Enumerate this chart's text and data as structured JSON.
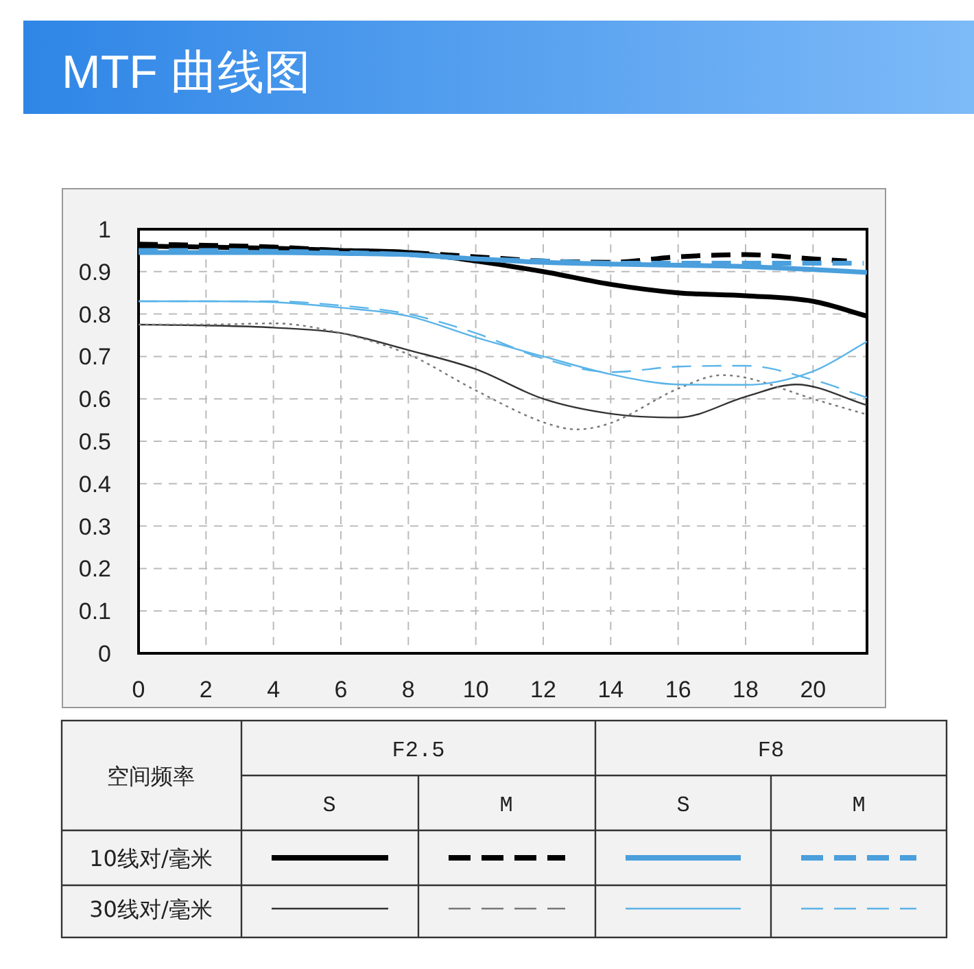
{
  "chart_data": {
    "type": "line",
    "title": "MTF 曲线图",
    "xlim": [
      0,
      21.6
    ],
    "xticks": [
      0,
      2,
      4,
      6,
      8,
      10,
      12,
      14,
      16,
      18,
      20
    ],
    "ylim": [
      0,
      1
    ],
    "yticks": [
      0,
      0.1,
      0.2,
      0.3,
      0.4,
      0.5,
      0.6,
      0.7,
      0.8,
      0.9,
      1
    ],
    "grid": true,
    "annotations": [
      "空间频率",
      "F2.5",
      "F8",
      "S",
      "M",
      "S",
      "M",
      "10线对/毫米",
      "30线对/毫米"
    ],
    "series": [
      {
        "color": "#000000",
        "line_style": "solid",
        "x": [
          0,
          2,
          4,
          6,
          8,
          10,
          12,
          14,
          16,
          18,
          20,
          21.6
        ],
        "values": [
          0.96,
          0.958,
          0.955,
          0.95,
          0.945,
          0.925,
          0.9,
          0.87,
          0.85,
          0.843,
          0.83,
          0.795
        ]
      },
      {
        "color": "#000000",
        "line_style": "dashed",
        "x": [
          0,
          2,
          4,
          6,
          8,
          10,
          12,
          14,
          16,
          18,
          20,
          21
        ],
        "values": [
          0.965,
          0.962,
          0.958,
          0.95,
          0.945,
          0.935,
          0.925,
          0.922,
          0.935,
          0.94,
          0.93,
          0.925
        ]
      },
      {
        "color": "#4a9fdc",
        "line_style": "solid",
        "x": [
          0,
          2,
          4,
          6,
          8,
          10,
          12,
          14,
          16,
          18,
          20,
          21.6
        ],
        "values": [
          0.945,
          0.945,
          0.945,
          0.943,
          0.94,
          0.93,
          0.922,
          0.918,
          0.915,
          0.912,
          0.905,
          0.898
        ]
      },
      {
        "color": "#4a9fdc",
        "line_style": "dashed",
        "x": [
          0,
          2,
          4,
          6,
          8,
          10,
          12,
          14,
          16,
          18,
          20,
          21.5
        ],
        "values": [
          0.95,
          0.95,
          0.948,
          0.945,
          0.94,
          0.93,
          0.925,
          0.92,
          0.92,
          0.92,
          0.92,
          0.92
        ]
      },
      {
        "color": "#333333",
        "line_style": "solid",
        "x": [
          0,
          2,
          4,
          6,
          8,
          10,
          12,
          14,
          16,
          18,
          19.5,
          21.6
        ],
        "values": [
          0.775,
          0.773,
          0.768,
          0.755,
          0.715,
          0.67,
          0.6,
          0.565,
          0.556,
          0.605,
          0.634,
          0.585
        ]
      },
      {
        "color": "#777777",
        "line_style": "dotted",
        "x": [
          0,
          2,
          4,
          6,
          8,
          10,
          12,
          13,
          14,
          16,
          17.3,
          18,
          20,
          21.6
        ],
        "values": [
          0.775,
          0.775,
          0.778,
          0.755,
          0.705,
          0.62,
          0.545,
          0.528,
          0.543,
          0.624,
          0.656,
          0.65,
          0.6,
          0.563
        ]
      },
      {
        "color": "#5ab4e8",
        "line_style": "solid",
        "x": [
          0,
          2,
          4,
          6,
          8,
          10,
          12,
          14,
          16,
          18,
          20,
          21.6
        ],
        "values": [
          0.83,
          0.83,
          0.828,
          0.815,
          0.795,
          0.745,
          0.7,
          0.658,
          0.634,
          0.633,
          0.665,
          0.735
        ]
      },
      {
        "color": "#5ab4e8",
        "line_style": "dashed",
        "x": [
          0,
          2,
          4,
          6,
          8,
          10,
          12,
          14,
          16,
          18,
          20,
          21.6
        ],
        "values": [
          0.83,
          0.83,
          0.83,
          0.82,
          0.8,
          0.755,
          0.695,
          0.663,
          0.676,
          0.678,
          0.645,
          0.603
        ]
      }
    ]
  }
}
